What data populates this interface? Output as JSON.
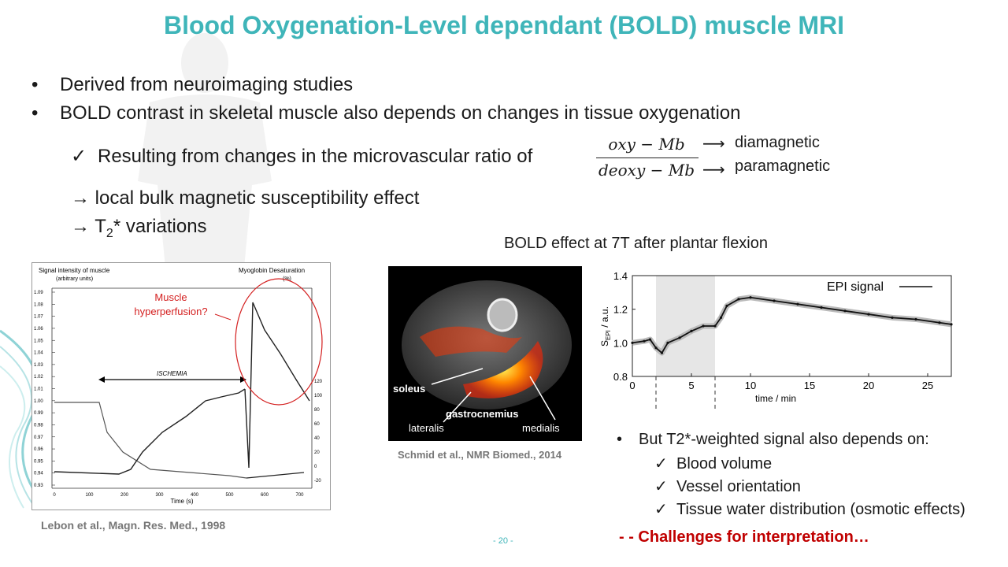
{
  "slide": {
    "title": "Blood Oxygenation-Level dependant (BOLD) muscle MRI",
    "bullets": [
      "Derived from neuroimaging studies",
      "BOLD contrast in skeletal muscle also depends on changes in tissue oxygenation"
    ],
    "bullet_symbol": "•",
    "check_symbol": "✓",
    "sub_check": "Resulting from changes in the microvascular ratio of",
    "fraction": {
      "numerator": "oxy − Mb",
      "denominator": "deoxy − Mb"
    },
    "arrow": "⟶",
    "numerator_label": "diamagnetic",
    "denominator_label": "paramagnetic",
    "effects": [
      {
        "prefix": "→ ",
        "text": "local bulk magnetic susceptibility effect"
      },
      {
        "prefix": "→ T",
        "sub": "2",
        "text": "* variations"
      }
    ],
    "bold_caption": "BOLD effect at 7T after plantar flexion",
    "ref1": "Lebon et al., Magn. Res. Med., 1998",
    "ref2": "Schmid et al., NMR Biomed., 2014",
    "right_heading": "But T2*-weighted signal also depends on:",
    "right_items": [
      "Blood volume",
      "Vessel orientation",
      "Tissue water distribution (osmotic effects)"
    ],
    "challenge": "- - Challenges for interpretation…",
    "page_number": "- 20 -",
    "accent_color": "#3fb5b9",
    "challenge_color": "#c00000"
  },
  "figure1": {
    "y_label_left": [
      "Signal intensity of muscle",
      "(arbitrary units)"
    ],
    "y_label_right": [
      "Myoglobin Desaturation",
      "(%)"
    ],
    "x_label": "Time (s)",
    "annotation": [
      "Muscle",
      "hyperperfusion?"
    ],
    "ischemia_label": "ISCHEMIA",
    "y_ticks": [
      "1.09",
      "1.08",
      "1.07",
      "1.06",
      "1.05",
      "1.04",
      "1.03",
      "1.02",
      "1.01",
      "1.00",
      "0.99",
      "0.98",
      "0.97",
      "0.96",
      "0.95",
      "0.94",
      "0.93"
    ],
    "x_ticks": [
      "0",
      "100",
      "200",
      "300",
      "400",
      "500",
      "600",
      "700"
    ],
    "right_ticks": [
      "120",
      "100",
      "80",
      "60",
      "40",
      "20",
      "0",
      "-20"
    ],
    "annotation_color": "#d42020"
  },
  "figure2": {
    "labels": {
      "soleus": "soleus",
      "gastro": "gastrocnemius",
      "lateralis": "lateralis",
      "medialis": "medialis"
    }
  },
  "chart_data": {
    "type": "line",
    "title": "",
    "legend": "EPI signal",
    "ylabel": "S",
    "ylabel_sub": "EPI",
    "ylabel_suffix": " / a.u.",
    "xlabel": "time / min",
    "xlim": [
      0,
      27
    ],
    "ylim": [
      0.8,
      1.4
    ],
    "x_ticks": [
      "0",
      "5",
      "10",
      "15",
      "20",
      "25"
    ],
    "y_ticks": [
      "0.8",
      "1.0",
      "1.2",
      "1.4"
    ],
    "exercise_shade": [
      2,
      7
    ],
    "series": [
      {
        "x": [
          0,
          1,
          1.5,
          2,
          2.5,
          3,
          4,
          5,
          6,
          7,
          7.5,
          8,
          9,
          10,
          12,
          14,
          16,
          18,
          20,
          22,
          24,
          26,
          27
        ],
        "values": [
          1.0,
          1.01,
          1.02,
          0.97,
          0.94,
          1.0,
          1.03,
          1.07,
          1.1,
          1.1,
          1.15,
          1.22,
          1.26,
          1.27,
          1.25,
          1.23,
          1.21,
          1.19,
          1.17,
          1.15,
          1.14,
          1.12,
          1.11
        ]
      }
    ]
  }
}
